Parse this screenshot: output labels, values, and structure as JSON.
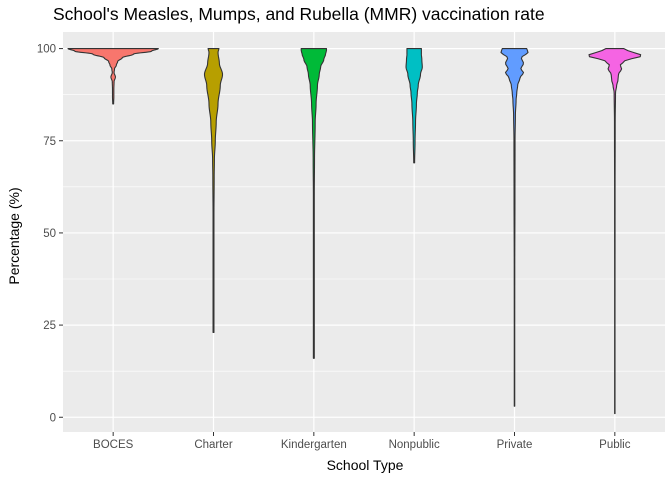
{
  "chart_data": {
    "type": "violin",
    "title": "School's Measles, Mumps, and Rubella (MMR) vaccination rate",
    "xlabel": "School Type",
    "ylabel": "Percentage (%)",
    "ylim": [
      -4,
      104.5
    ],
    "y_ticks": [
      0,
      25,
      50,
      75,
      100
    ],
    "y_tick_labels": [
      "0",
      "25",
      "50",
      "75",
      "100"
    ],
    "grid": true,
    "legend": "none",
    "categories": [
      "BOCES",
      "Charter",
      "Kindergarten",
      "Nonpublic",
      "Private",
      "Public"
    ],
    "colors": [
      "#F8766D",
      "#B79F00",
      "#00BA38",
      "#00BFC4",
      "#619CFF",
      "#F564E3"
    ],
    "series": [
      {
        "category": "BOCES",
        "min": 85,
        "max": 100,
        "density": [
          [
            85,
            0.01
          ],
          [
            87,
            0.015
          ],
          [
            89,
            0.015
          ],
          [
            91,
            0.02
          ],
          [
            92.3,
            0.05
          ],
          [
            93.5,
            0.02
          ],
          [
            94.5,
            0.03
          ],
          [
            95.5,
            0.07
          ],
          [
            96.5,
            0.1
          ],
          [
            97.5,
            0.2
          ],
          [
            98.5,
            0.45
          ],
          [
            99.3,
            0.85
          ],
          [
            100,
            1.0
          ]
        ]
      },
      {
        "category": "Charter",
        "min": 23,
        "max": 100,
        "density": [
          [
            23,
            0.01
          ],
          [
            40,
            0.01
          ],
          [
            55,
            0.01
          ],
          [
            65,
            0.015
          ],
          [
            70,
            0.02
          ],
          [
            75,
            0.04
          ],
          [
            80,
            0.06
          ],
          [
            85,
            0.1
          ],
          [
            90,
            0.15
          ],
          [
            93,
            0.2
          ],
          [
            96,
            0.13
          ],
          [
            99,
            0.1
          ],
          [
            100,
            0.12
          ]
        ]
      },
      {
        "category": "Kindergarten",
        "min": 16,
        "max": 100,
        "density": [
          [
            16,
            0.01
          ],
          [
            40,
            0.01
          ],
          [
            60,
            0.01
          ],
          [
            70,
            0.015
          ],
          [
            80,
            0.03
          ],
          [
            85,
            0.05
          ],
          [
            90,
            0.08
          ],
          [
            93,
            0.12
          ],
          [
            95,
            0.15
          ],
          [
            97,
            0.22
          ],
          [
            98.5,
            0.26
          ],
          [
            99.5,
            0.28
          ],
          [
            100,
            0.28
          ]
        ]
      },
      {
        "category": "Nonpublic",
        "min": 69,
        "max": 100,
        "density": [
          [
            69,
            0.01
          ],
          [
            75,
            0.02
          ],
          [
            80,
            0.03
          ],
          [
            85,
            0.05
          ],
          [
            88,
            0.07
          ],
          [
            90,
            0.09
          ],
          [
            93,
            0.14
          ],
          [
            95,
            0.18
          ],
          [
            97,
            0.17
          ],
          [
            98.5,
            0.16
          ],
          [
            100,
            0.16
          ]
        ]
      },
      {
        "category": "Private",
        "min": 3,
        "max": 100,
        "density": [
          [
            3,
            0.005
          ],
          [
            20,
            0.005
          ],
          [
            40,
            0.006
          ],
          [
            60,
            0.01
          ],
          [
            75,
            0.012
          ],
          [
            82,
            0.02
          ],
          [
            86,
            0.035
          ],
          [
            88,
            0.05
          ],
          [
            90,
            0.07
          ],
          [
            92,
            0.12
          ],
          [
            93.5,
            0.2
          ],
          [
            94.5,
            0.14
          ],
          [
            96,
            0.2
          ],
          [
            97.5,
            0.15
          ],
          [
            99,
            0.3
          ],
          [
            100,
            0.27
          ]
        ]
      },
      {
        "category": "Public",
        "min": 1,
        "max": 100,
        "density": [
          [
            1,
            0.004
          ],
          [
            30,
            0.004
          ],
          [
            60,
            0.005
          ],
          [
            80,
            0.008
          ],
          [
            88,
            0.015
          ],
          [
            90,
            0.04
          ],
          [
            91.5,
            0.07
          ],
          [
            93,
            0.08
          ],
          [
            94.5,
            0.15
          ],
          [
            95.5,
            0.12
          ],
          [
            96.5,
            0.2
          ],
          [
            97.5,
            0.4
          ],
          [
            98,
            0.65
          ],
          [
            98.5,
            0.55
          ],
          [
            99.3,
            0.3
          ],
          [
            100,
            0.2
          ]
        ]
      }
    ]
  }
}
